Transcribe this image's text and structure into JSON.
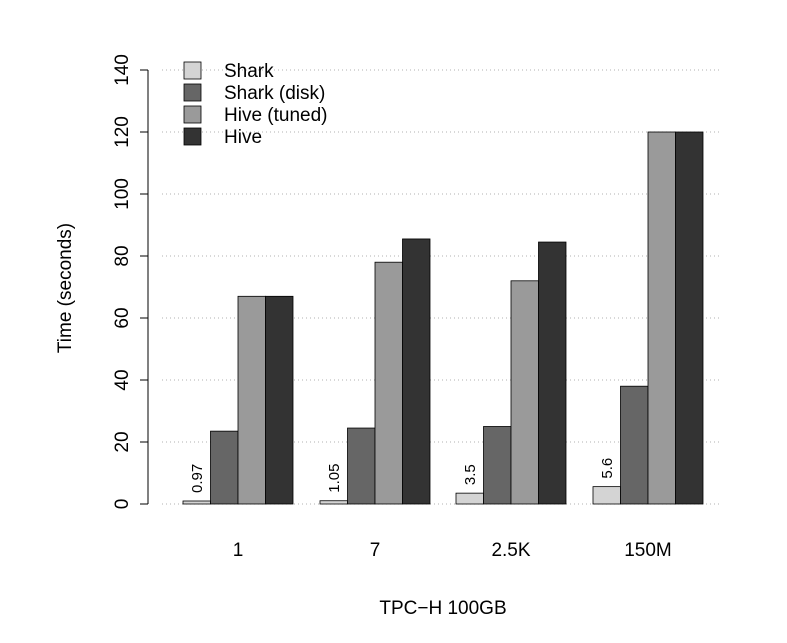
{
  "chart_data": {
    "type": "bar",
    "title": "",
    "xlabel": "TPC−H 100GB",
    "ylabel": "Time (seconds)",
    "ylim": [
      0,
      140
    ],
    "yticks": [
      0,
      20,
      40,
      60,
      80,
      100,
      120,
      140
    ],
    "grid": "horizontal dotted",
    "legend_position": "top-left",
    "categories": [
      "1",
      "7",
      "2.5K",
      "150M"
    ],
    "series": [
      {
        "name": "Shark",
        "color": "#d4d4d4",
        "values": [
          0.97,
          1.05,
          3.5,
          5.6
        ]
      },
      {
        "name": "Shark (disk)",
        "color": "#666666",
        "values": [
          23.5,
          24.5,
          25,
          38
        ]
      },
      {
        "name": "Hive (tuned)",
        "color": "#9a9a9a",
        "values": [
          67,
          78,
          72,
          120
        ]
      },
      {
        "name": "Hive",
        "color": "#333333",
        "values": [
          67,
          85.5,
          84.5,
          120
        ]
      }
    ],
    "data_labels": {
      "series": "Shark",
      "labels": [
        "0.97",
        "1.05",
        "3.5",
        "5.6"
      ]
    }
  }
}
